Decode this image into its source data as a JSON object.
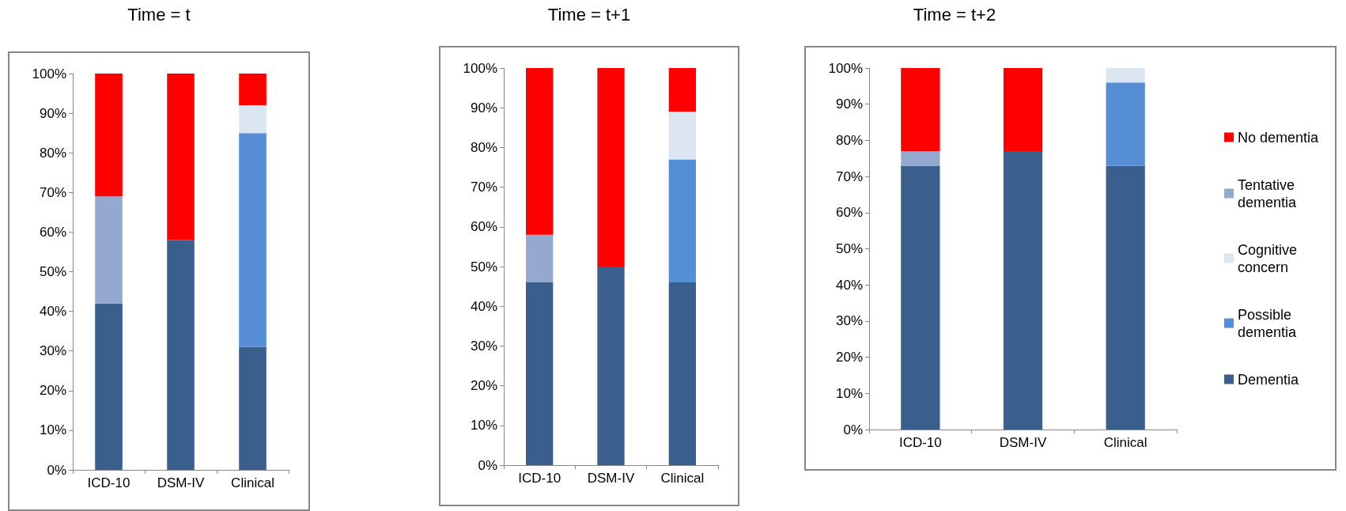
{
  "chart_data": [
    {
      "type": "bar",
      "title": "Time = t",
      "stacked": true,
      "categories": [
        "ICD-10",
        "DSM-IV",
        "Clinical"
      ],
      "ylim": [
        0,
        100
      ],
      "yticks": [
        {
          "value": 0,
          "label": "0%"
        },
        {
          "value": 10,
          "label": "10%"
        },
        {
          "value": 20,
          "label": "20%"
        },
        {
          "value": 30,
          "label": "30%"
        },
        {
          "value": 40,
          "label": "40%"
        },
        {
          "value": 50,
          "label": "50%"
        },
        {
          "value": 60,
          "label": "60%"
        },
        {
          "value": 70,
          "label": "70%"
        },
        {
          "value": 80,
          "label": "80%"
        },
        {
          "value": 90,
          "label": "90%"
        },
        {
          "value": 100,
          "label": "100%"
        }
      ],
      "grid": false,
      "legend": false,
      "series": [
        {
          "color": "#3a5f8c",
          "values": [
            42,
            58,
            31
          ]
        },
        {
          "color": "#558ed5",
          "values": [
            null,
            null,
            54
          ]
        },
        {
          "color": "#dce6f2",
          "values": [
            null,
            null,
            7
          ]
        },
        {
          "color": "#95a9d0",
          "values": [
            27,
            null,
            null
          ]
        },
        {
          "color": "#ff0000",
          "values": [
            31,
            42,
            8
          ]
        }
      ]
    },
    {
      "type": "bar",
      "title": "Time = t+1",
      "stacked": true,
      "categories": [
        "ICD-10",
        "DSM-IV",
        "Clinical"
      ],
      "ylim": [
        0,
        100
      ],
      "yticks": [
        {
          "value": 0,
          "label": "0%"
        },
        {
          "value": 10,
          "label": "10%"
        },
        {
          "value": 20,
          "label": "20%"
        },
        {
          "value": 30,
          "label": "30%"
        },
        {
          "value": 40,
          "label": "40%"
        },
        {
          "value": 50,
          "label": "50%"
        },
        {
          "value": 60,
          "label": "60%"
        },
        {
          "value": 70,
          "label": "70%"
        },
        {
          "value": 80,
          "label": "80%"
        },
        {
          "value": 90,
          "label": "90%"
        },
        {
          "value": 100,
          "label": "100%"
        }
      ],
      "grid": false,
      "legend": false,
      "series": [
        {
          "color": "#3a5f8c",
          "values": [
            46,
            50,
            46
          ]
        },
        {
          "color": "#558ed5",
          "values": [
            null,
            null,
            31
          ]
        },
        {
          "color": "#dce6f2",
          "values": [
            null,
            null,
            12
          ]
        },
        {
          "color": "#95a9d0",
          "values": [
            12,
            null,
            null
          ]
        },
        {
          "color": "#ff0000",
          "values": [
            42,
            50,
            11
          ]
        }
      ]
    },
    {
      "type": "bar",
      "title": "Time = t+2",
      "stacked": true,
      "categories": [
        "ICD-10",
        "DSM-IV",
        "Clinical"
      ],
      "ylim": [
        0,
        100
      ],
      "yticks": [
        {
          "value": 0,
          "label": "0%"
        },
        {
          "value": 10,
          "label": "10%"
        },
        {
          "value": 20,
          "label": "20%"
        },
        {
          "value": 30,
          "label": "30%"
        },
        {
          "value": 40,
          "label": "40%"
        },
        {
          "value": 50,
          "label": "50%"
        },
        {
          "value": 60,
          "label": "60%"
        },
        {
          "value": 70,
          "label": "70%"
        },
        {
          "value": 80,
          "label": "80%"
        },
        {
          "value": 90,
          "label": "90%"
        },
        {
          "value": 100,
          "label": "100%"
        }
      ],
      "grid": false,
      "legend": "right",
      "series": [
        {
          "name": "Dementia",
          "color": "#3a5f8c",
          "values": [
            73,
            77,
            73
          ]
        },
        {
          "name": "Possible dementia",
          "color": "#558ed5",
          "values": [
            null,
            null,
            23
          ]
        },
        {
          "name": "Cognitive concern",
          "color": "#dce6f2",
          "values": [
            null,
            null,
            4
          ]
        },
        {
          "name": "Tentative dementia",
          "color": "#95a9d0",
          "values": [
            4,
            null,
            null
          ]
        },
        {
          "name": "No dementia",
          "color": "#ff0000",
          "values": [
            23,
            23,
            null
          ]
        }
      ]
    }
  ]
}
